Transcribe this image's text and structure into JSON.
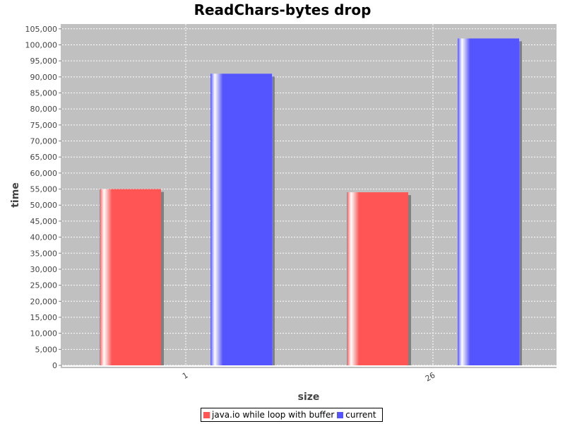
{
  "chart_data": {
    "type": "bar",
    "title": "ReadChars-bytes drop",
    "xlabel": "size",
    "ylabel": "time",
    "categories": [
      "1",
      "26"
    ],
    "series": [
      {
        "name": "java.io while loop with buffer",
        "color": "#ff5555",
        "values": [
          55000,
          54000
        ]
      },
      {
        "name": "current",
        "color": "#5555ff",
        "values": [
          91000,
          102000
        ]
      }
    ],
    "ylim": [
      0,
      106500
    ],
    "ytick_step": 5000,
    "yticks": [
      "0",
      "5,000",
      "10,000",
      "15,000",
      "20,000",
      "25,000",
      "30,000",
      "35,000",
      "40,000",
      "45,000",
      "50,000",
      "55,000",
      "60,000",
      "65,000",
      "70,000",
      "75,000",
      "80,000",
      "85,000",
      "90,000",
      "95,000",
      "100,000",
      "105,000"
    ],
    "grid": true,
    "plot_background": "#c0c0c0",
    "legend_position": "bottom"
  }
}
